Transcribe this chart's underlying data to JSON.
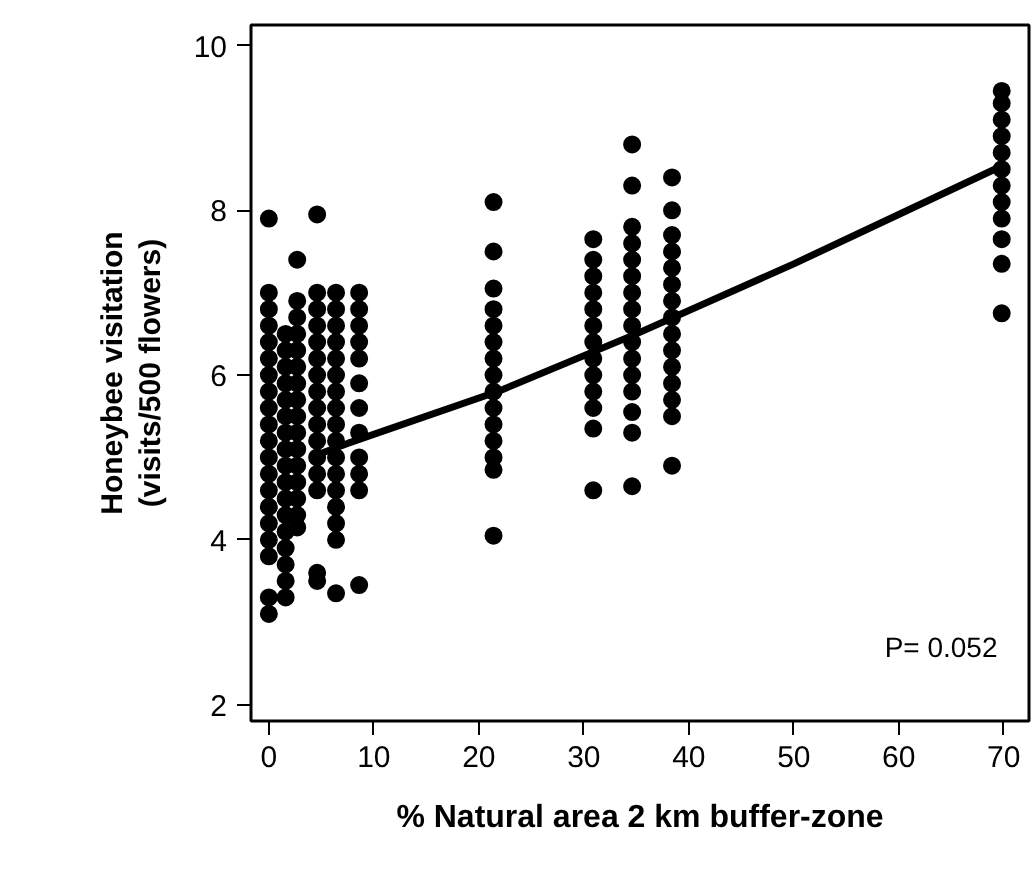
{
  "chart_data": {
    "type": "scatter",
    "xlabel": "% Natural area 2 km buffer-zone",
    "ylabel": "Honeybee visitation\n(visits/500 flowers)",
    "xlim": [
      -1.7,
      72.4
    ],
    "ylim": [
      1.8,
      10.25
    ],
    "xticks": [
      0,
      10,
      20,
      30,
      40,
      50,
      60,
      70
    ],
    "yticks": [
      2,
      4,
      6,
      8,
      10
    ],
    "grid": false,
    "marker": "circle",
    "annotations": [
      "P= 0.052"
    ],
    "series": [
      {
        "type": "scatter",
        "color": "#000000",
        "x": [
          0,
          0,
          0,
          0,
          0,
          0,
          0,
          0,
          0,
          0,
          0,
          0,
          0,
          0,
          0,
          0,
          0,
          0,
          0,
          0,
          1.6,
          1.6,
          1.6,
          1.6,
          1.6,
          1.6,
          1.6,
          1.6,
          1.6,
          1.6,
          1.6,
          1.6,
          1.6,
          1.6,
          1.6,
          1.6,
          1.6,
          2.7,
          2.7,
          2.7,
          2.7,
          2.7,
          2.7,
          2.7,
          2.7,
          2.7,
          2.7,
          2.7,
          2.7,
          2.7,
          2.7,
          2.7,
          2.7,
          4.6,
          4.6,
          4.6,
          4.6,
          4.6,
          4.6,
          4.6,
          4.6,
          4.6,
          4.6,
          4.6,
          4.6,
          4.6,
          4.6,
          4.6,
          4.6,
          6.4,
          6.4,
          6.4,
          6.4,
          6.4,
          6.4,
          6.4,
          6.4,
          6.4,
          6.4,
          6.4,
          6.4,
          6.4,
          6.4,
          6.4,
          6.4,
          6.4,
          8.6,
          8.6,
          8.6,
          8.6,
          8.6,
          8.6,
          8.6,
          8.6,
          8.6,
          8.6,
          8.6,
          8.6,
          21.4,
          21.4,
          21.4,
          21.4,
          21.4,
          21.4,
          21.4,
          21.4,
          21.4,
          21.4,
          21.4,
          21.4,
          21.4,
          21.4,
          21.4,
          30.9,
          30.9,
          30.9,
          30.9,
          30.9,
          30.9,
          30.9,
          30.9,
          30.9,
          30.9,
          30.9,
          30.9,
          30.9,
          34.6,
          34.6,
          34.6,
          34.6,
          34.6,
          34.6,
          34.6,
          34.6,
          34.6,
          34.6,
          34.6,
          34.6,
          34.6,
          34.6,
          34.6,
          34.6,
          38.4,
          38.4,
          38.4,
          38.4,
          38.4,
          38.4,
          38.4,
          38.4,
          38.4,
          38.4,
          38.4,
          38.4,
          38.4,
          38.4,
          38.4,
          69.8,
          69.8,
          69.8,
          69.8,
          69.8,
          69.8,
          69.8,
          69.8,
          69.8,
          69.8,
          69.8,
          69.8
        ],
        "values": [
          7.9,
          7.0,
          6.8,
          6.6,
          6.4,
          6.2,
          6.0,
          5.8,
          5.6,
          5.4,
          5.2,
          5.0,
          4.8,
          4.6,
          4.4,
          4.2,
          4.0,
          3.8,
          3.3,
          3.1,
          6.5,
          6.3,
          6.1,
          5.9,
          5.7,
          5.5,
          5.3,
          5.1,
          4.9,
          4.7,
          4.5,
          4.3,
          4.1,
          3.9,
          3.7,
          3.5,
          3.3,
          7.4,
          6.9,
          6.7,
          6.5,
          6.3,
          6.1,
          5.9,
          5.7,
          5.5,
          5.3,
          5.1,
          4.9,
          4.7,
          4.5,
          4.3,
          4.15,
          7.95,
          7.0,
          6.8,
          6.6,
          6.4,
          6.2,
          6.0,
          5.8,
          5.6,
          5.4,
          5.2,
          5.0,
          4.8,
          4.6,
          3.6,
          3.5,
          7.0,
          6.8,
          6.6,
          6.4,
          6.2,
          6.0,
          5.8,
          5.6,
          5.4,
          5.2,
          5.0,
          4.8,
          4.6,
          4.4,
          4.2,
          4.0,
          3.35,
          7.0,
          6.8,
          6.6,
          6.4,
          6.2,
          5.9,
          5.6,
          5.3,
          5.0,
          4.8,
          4.6,
          3.45,
          8.1,
          7.5,
          7.05,
          6.8,
          6.6,
          6.4,
          6.2,
          6.0,
          5.8,
          5.6,
          5.4,
          5.2,
          5.0,
          4.85,
          4.05,
          7.65,
          7.4,
          7.2,
          7.0,
          6.8,
          6.6,
          6.4,
          6.2,
          6.0,
          5.8,
          5.6,
          5.35,
          4.6,
          8.8,
          8.3,
          7.8,
          7.6,
          7.4,
          7.2,
          7.0,
          6.8,
          6.6,
          6.4,
          6.2,
          6.0,
          5.8,
          5.55,
          5.3,
          4.65,
          8.4,
          8.0,
          7.7,
          7.5,
          7.3,
          7.1,
          6.9,
          6.7,
          6.5,
          6.3,
          6.1,
          5.9,
          5.7,
          5.5,
          4.9,
          9.45,
          9.3,
          9.1,
          8.9,
          8.7,
          8.5,
          8.3,
          8.1,
          7.9,
          7.65,
          7.35,
          6.75
        ]
      },
      {
        "type": "line",
        "marker": "none",
        "color": "#000000",
        "x": [
          5,
          7.5,
          22,
          35,
          50,
          70
        ],
        "values": [
          5.05,
          5.17,
          5.81,
          6.5,
          7.35,
          8.55
        ]
      }
    ]
  }
}
